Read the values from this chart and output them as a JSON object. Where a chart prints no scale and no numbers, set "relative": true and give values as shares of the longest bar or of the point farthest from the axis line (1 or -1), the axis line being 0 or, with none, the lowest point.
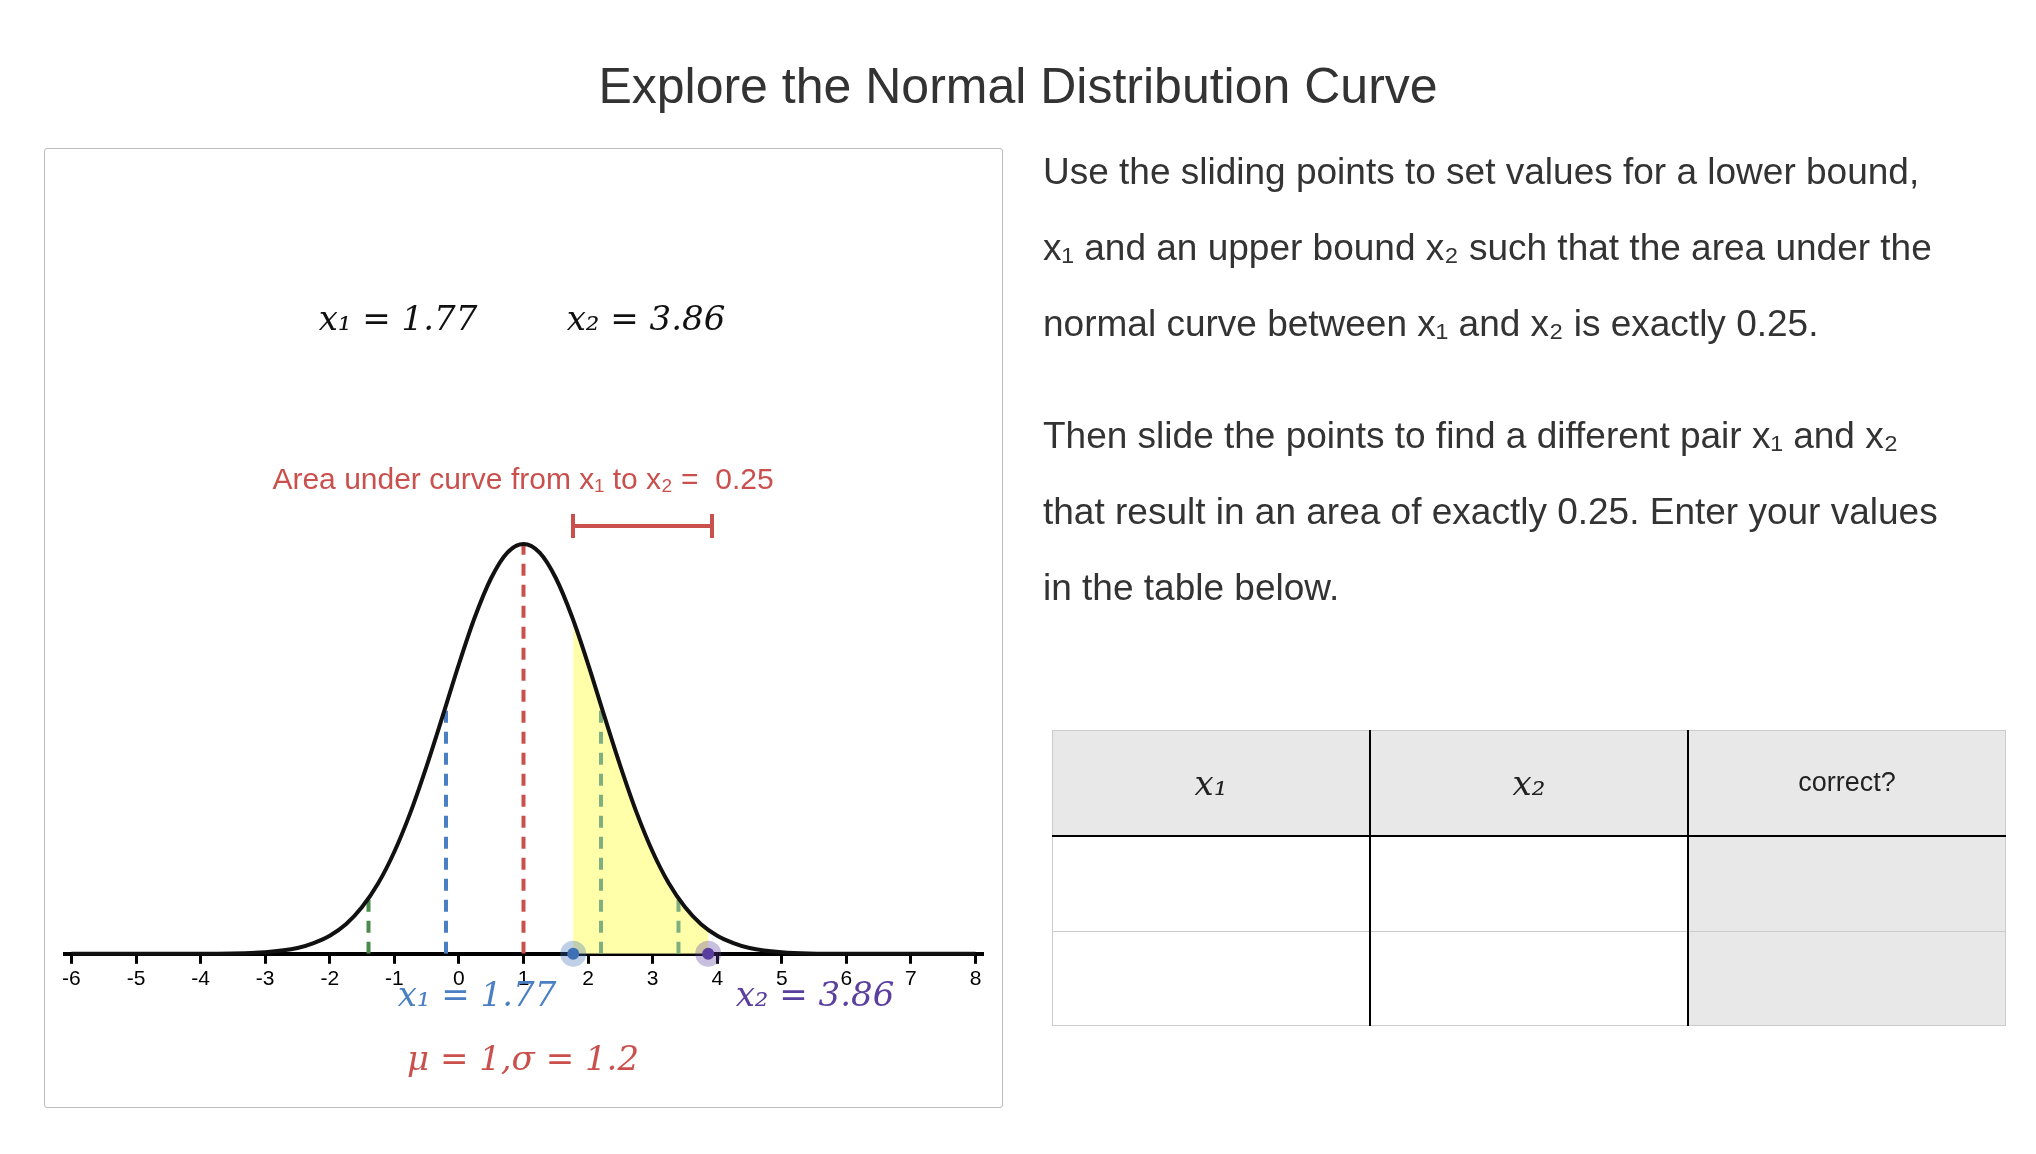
{
  "chart_data": [
    {
      "type": "line",
      "title": "Explore the Normal Distribution Curve",
      "relative": true,
      "xlim": [
        -6.1,
        8.1
      ],
      "xticks": [
        -6,
        -5,
        -4,
        -3,
        -2,
        -1,
        0,
        1,
        2,
        3,
        4,
        5,
        6,
        7,
        8
      ],
      "series": [
        {
          "type": "line",
          "color": "#111111",
          "x": [
            -6,
            -4,
            -3,
            -2.5,
            -2.25,
            -2,
            -1.75,
            -1.5,
            -1.25,
            -1,
            -0.75,
            -0.5,
            -0.25,
            0,
            0.25,
            0.5,
            0.75,
            1,
            1.25,
            1.5,
            1.75,
            2,
            2.25,
            2.5,
            2.75,
            3,
            3.25,
            3.5,
            3.75,
            4,
            4.25,
            4.5,
            5,
            6,
            8
          ],
          "values": [
            0,
            0,
            0.004,
            0.014,
            0.026,
            0.044,
            0.072,
            0.114,
            0.172,
            0.249,
            0.345,
            0.458,
            0.581,
            0.707,
            0.823,
            0.917,
            0.979,
            1,
            0.979,
            0.917,
            0.823,
            0.707,
            0.581,
            0.458,
            0.345,
            0.249,
            0.172,
            0.114,
            0.072,
            0.044,
            0.026,
            0.014,
            0.004,
            0,
            0
          ]
        },
        {
          "type": "scatter",
          "color": "#3f6fb5",
          "x": [
            1.77
          ],
          "values": [
            0
          ]
        },
        {
          "type": "scatter",
          "color": "#5a3f9e",
          "x": [
            3.86
          ],
          "values": [
            0
          ]
        }
      ],
      "bands": [
        {
          "axis": "x",
          "from": 1.77,
          "to": 3.86,
          "color": "#ffffaa"
        }
      ],
      "ref_lines": [
        {
          "axis": "x",
          "value": 1,
          "color": "#c9504d",
          "line_style": "dashed"
        },
        {
          "axis": "x",
          "value": -0.2,
          "color": "#4a7fc4",
          "line_style": "dashed"
        },
        {
          "axis": "x",
          "value": 2.2,
          "color": "#7fae7f",
          "line_style": "dashed"
        },
        {
          "axis": "x",
          "value": -1.4,
          "color": "#4a8a4a",
          "line_style": "dashed"
        },
        {
          "axis": "x",
          "value": 3.4,
          "color": "#7fae7f",
          "line_style": "dashed"
        }
      ],
      "annotations": [
        "x₁ = 1.77",
        "x₂ = 3.86",
        "Area under curve from x₁ to x₂ =  0.25",
        "x₁ = 1.77",
        "x₂ = 3.86",
        "μ = 1,σ = 1.2"
      ]
    },
    {
      "type": "other",
      "annotations": [
        "Use the sliding points to set values for a lower bound, x₁ and an upper bound x₂ such that the area under the normal curve between x₁ and x₂ is exactly 0.25.",
        "Then slide the points to find a different pair x₁ and x₂ that result in an area of exactly 0.25. Enter your values in the table below."
      ],
      "categories": [
        "x₁",
        "x₂",
        "correct?"
      ]
    }
  ]
}
